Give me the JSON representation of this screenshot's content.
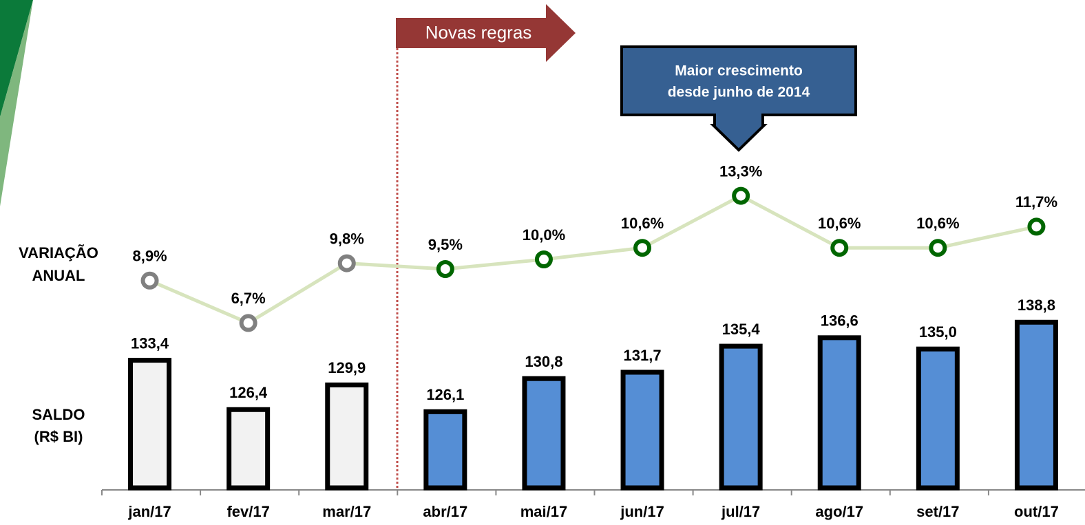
{
  "chart_data": {
    "type": "bar_line",
    "categories": [
      "jan/17",
      "fev/17",
      "mar/17",
      "abr/17",
      "mai/17",
      "jun/17",
      "jul/17",
      "ago/17",
      "set/17",
      "out/17"
    ],
    "bars": {
      "values": [
        133.4,
        126.4,
        129.9,
        126.1,
        130.8,
        131.7,
        135.4,
        136.6,
        135.0,
        138.8
      ],
      "value_labels": [
        "133,4",
        "126,4",
        "129,9",
        "126,1",
        "130,8",
        "131,7",
        "135,4",
        "136,6",
        "135,0",
        "138,8"
      ],
      "colors": [
        "#f2f2f2",
        "#f2f2f2",
        "#f2f2f2",
        "#558ed5",
        "#558ed5",
        "#558ed5",
        "#558ed5",
        "#558ed5",
        "#558ed5",
        "#558ed5"
      ]
    },
    "line": {
      "axis": "y2",
      "values": [
        8.9,
        6.7,
        9.8,
        9.5,
        10.0,
        10.6,
        13.3,
        10.6,
        10.6,
        11.7
      ],
      "value_labels": [
        "8,9%",
        "6,7%",
        "9,8%",
        "9,5%",
        "10,0%",
        "10,6%",
        "13,3%",
        "10,6%",
        "10,6%",
        "11,7%"
      ],
      "color": "#d7e4bd",
      "marker_colors": [
        "#808080",
        "#808080",
        "#808080",
        "#006600",
        "#006600",
        "#006600",
        "#006600",
        "#006600",
        "#006600",
        "#006600"
      ]
    },
    "ylim": [
      115,
      140
    ],
    "y2lim": [
      5,
      15
    ],
    "row_labels": {
      "line": [
        "VARIAÇÃO",
        "ANUAL"
      ],
      "bars": [
        "SALDO",
        "(R$ BI)"
      ]
    },
    "annotations": {
      "rule": "Novas regras",
      "callout": [
        "Maior crescimento",
        "desde junho de 2014"
      ]
    }
  }
}
